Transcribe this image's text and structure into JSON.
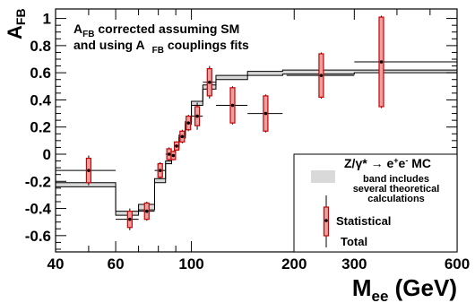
{
  "chart_data": {
    "type": "scatter",
    "x_scale": "log",
    "xlim": [
      40,
      600
    ],
    "ylim": [
      -0.72,
      1.07
    ],
    "xticks": [
      40,
      60,
      100,
      200,
      300,
      600
    ],
    "yticks": [
      -0.6,
      -0.4,
      -0.2,
      0,
      0.2,
      0.4,
      0.6,
      0.8,
      1
    ],
    "xtick_labels": [
      "40",
      "60",
      "100",
      "200",
      "300",
      "600"
    ],
    "ytick_labels": [
      "-0.6",
      "-0.4",
      "-0.2",
      "0",
      "0.2",
      "0.4",
      "0.6",
      "0.8",
      "1"
    ],
    "xlabel_main": "M",
    "xlabel_sub": "ee",
    "xlabel_rest": " (GeV)",
    "ylabel_main": "A",
    "ylabel_sub": "FB",
    "annotation": {
      "line1_a": "A",
      "line1_sub": "FB",
      "line1_rest": " corrected assuming SM",
      "line2_a": "and using A",
      "line2_sub": "FB",
      "line2_rest": " couplings fits"
    },
    "legend": {
      "placement": "bottom-right",
      "mc_label_main": "Z/γ* → e",
      "mc_label_sup1": "+",
      "mc_label_mid": "e",
      "mc_label_sup2": "-",
      "mc_label_end": " MC",
      "band_lines": [
        "band includes",
        "several theoretical",
        "calculations"
      ],
      "statistical_label": "Statistical",
      "total_label": "Total"
    },
    "colors": {
      "statistical": "#cc0000",
      "total": "#000000",
      "band": "#d9d9d9"
    },
    "points": [
      {
        "x": 50,
        "y": -0.12,
        "xlo": 40,
        "xhi": 60,
        "stat": 0.09,
        "tot": 0.11
      },
      {
        "x": 66,
        "y": -0.48,
        "xlo": 60,
        "xhi": 70,
        "stat": 0.06,
        "tot": 0.08
      },
      {
        "x": 74,
        "y": -0.42,
        "xlo": 70,
        "xhi": 78,
        "stat": 0.06,
        "tot": 0.07
      },
      {
        "x": 81,
        "y": -0.12,
        "xlo": 78,
        "xhi": 84,
        "stat": 0.05,
        "tot": 0.06
      },
      {
        "x": 86,
        "y": 0.0,
        "xlo": 84,
        "xhi": 87.5,
        "stat": 0.04,
        "tot": 0.05
      },
      {
        "x": 88.5,
        "y": -0.01,
        "xlo": 87.5,
        "xhi": 89.5,
        "stat": 0.03,
        "tot": 0.035
      },
      {
        "x": 90.5,
        "y": 0.06,
        "xlo": 89.5,
        "xhi": 92,
        "stat": 0.03,
        "tot": 0.035
      },
      {
        "x": 94,
        "y": 0.13,
        "xlo": 92,
        "xhi": 96,
        "stat": 0.04,
        "tot": 0.05
      },
      {
        "x": 98,
        "y": 0.23,
        "xlo": 96,
        "xhi": 100,
        "stat": 0.05,
        "tot": 0.06
      },
      {
        "x": 104,
        "y": 0.28,
        "xlo": 100,
        "xhi": 108,
        "stat": 0.07,
        "tot": 0.1
      },
      {
        "x": 113,
        "y": 0.53,
        "xlo": 108,
        "xhi": 118,
        "stat": 0.1,
        "tot": 0.12
      },
      {
        "x": 132,
        "y": 0.36,
        "xlo": 118,
        "xhi": 146,
        "stat": 0.13,
        "tot": 0.14
      },
      {
        "x": 165,
        "y": 0.3,
        "xlo": 146,
        "xhi": 185,
        "stat": 0.13,
        "tot": 0.14
      },
      {
        "x": 240,
        "y": 0.58,
        "xlo": 190,
        "xhi": 300,
        "stat": 0.16,
        "tot": 0.17
      },
      {
        "x": 360,
        "y": 0.68,
        "xlo": 300,
        "xhi": 600,
        "stat": 0.33,
        "tot": 0.34
      }
    ],
    "mc_steps": [
      {
        "xlo": 40,
        "xhi": 60,
        "ylo": -0.24,
        "yhi": -0.21
      },
      {
        "xlo": 60,
        "xhi": 70,
        "ylo": -0.45,
        "yhi": -0.42
      },
      {
        "xlo": 70,
        "xhi": 78,
        "ylo": -0.41,
        "yhi": -0.37
      },
      {
        "xlo": 78,
        "xhi": 84,
        "ylo": -0.21,
        "yhi": -0.18
      },
      {
        "xlo": 84,
        "xhi": 87.5,
        "ylo": -0.07,
        "yhi": -0.05
      },
      {
        "xlo": 87.5,
        "xhi": 89.5,
        "ylo": -0.02,
        "yhi": 0.0
      },
      {
        "xlo": 89.5,
        "xhi": 92,
        "ylo": 0.04,
        "yhi": 0.06
      },
      {
        "xlo": 92,
        "xhi": 96,
        "ylo": 0.12,
        "yhi": 0.14
      },
      {
        "xlo": 96,
        "xhi": 100,
        "ylo": 0.22,
        "yhi": 0.24
      },
      {
        "xlo": 100,
        "xhi": 108,
        "ylo": 0.36,
        "yhi": 0.39
      },
      {
        "xlo": 108,
        "xhi": 118,
        "ylo": 0.48,
        "yhi": 0.51
      },
      {
        "xlo": 118,
        "xhi": 146,
        "ylo": 0.55,
        "yhi": 0.58
      },
      {
        "xlo": 146,
        "xhi": 185,
        "ylo": 0.58,
        "yhi": 0.61
      },
      {
        "xlo": 185,
        "xhi": 300,
        "ylo": 0.59,
        "yhi": 0.62
      },
      {
        "xlo": 300,
        "xhi": 600,
        "ylo": 0.6,
        "yhi": 0.62
      }
    ]
  }
}
